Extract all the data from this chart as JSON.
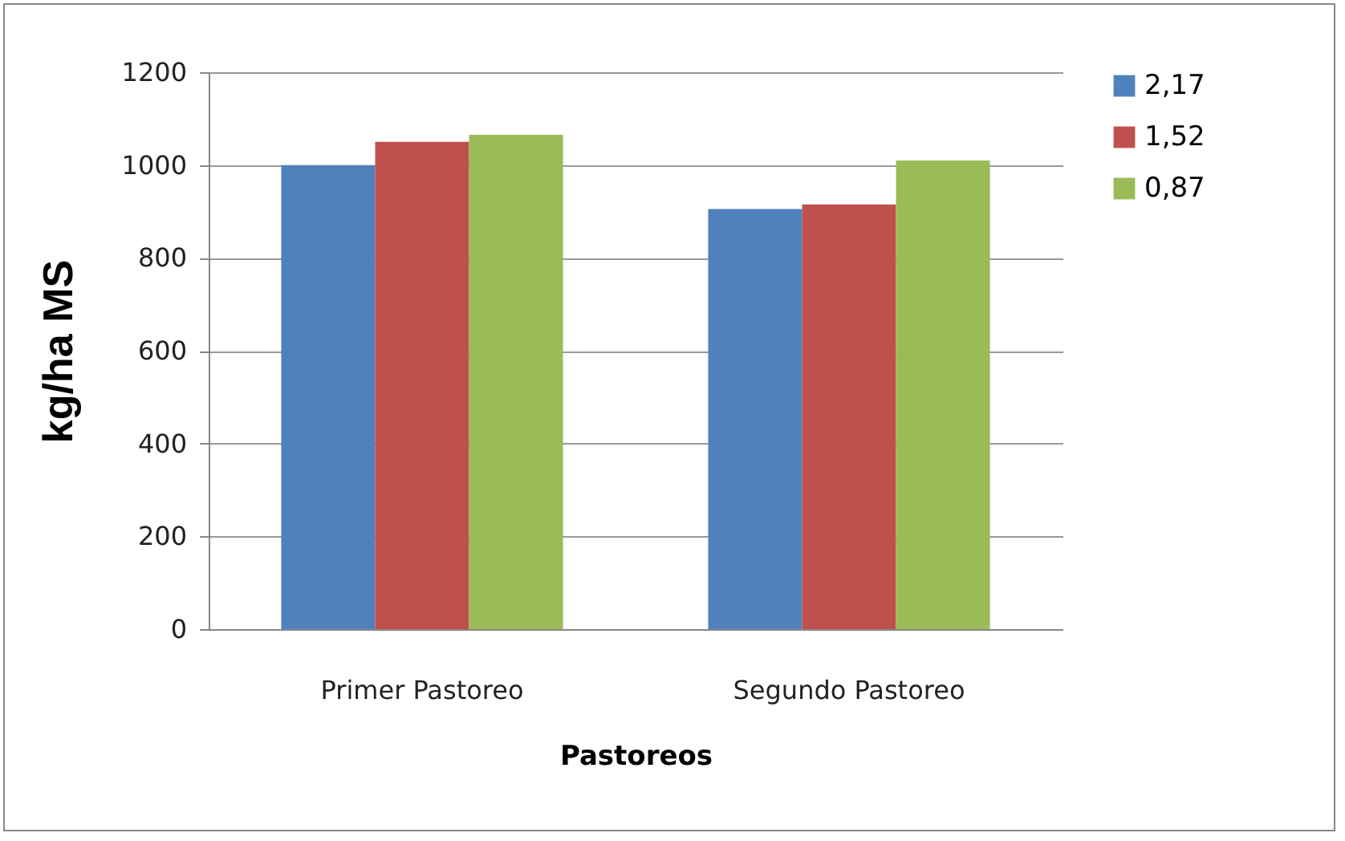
{
  "chart_data": {
    "type": "bar",
    "xlabel": "Pastoreos",
    "ylabel": "kg/ha MS",
    "categories": [
      "Primer Pastoreo",
      "Segundo Pastoreo"
    ],
    "series": [
      {
        "name": "2,17",
        "color": "#4f81bd",
        "values": [
          1000,
          905
        ]
      },
      {
        "name": "1,52",
        "color": "#c0504d",
        "values": [
          1050,
          915
        ]
      },
      {
        "name": "0,87",
        "color": "#9bbb59",
        "values": [
          1065,
          1010
        ]
      }
    ],
    "ylim": [
      0,
      1200
    ],
    "yticks": [
      0,
      200,
      400,
      600,
      800,
      1000,
      1200
    ],
    "grid": "y",
    "legend": "right"
  }
}
